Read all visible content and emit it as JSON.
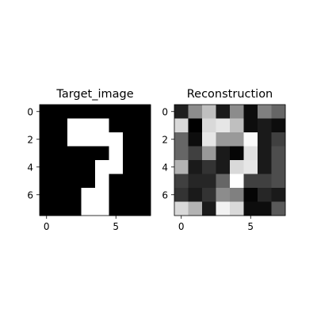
{
  "figure": {
    "background": "#ffffff"
  },
  "chart_data": [
    {
      "type": "heatmap",
      "title": "Target_image",
      "colormap": "gray",
      "vmin": 0,
      "vmax": 1,
      "x_ticks": [
        0,
        5
      ],
      "y_ticks": [
        0,
        2,
        4,
        6
      ],
      "grid": false,
      "values": [
        [
          0,
          0,
          0,
          0,
          0,
          0,
          0,
          0
        ],
        [
          0,
          0,
          1,
          1,
          1,
          0,
          0,
          0
        ],
        [
          0,
          0,
          1,
          1,
          1,
          1,
          0,
          0
        ],
        [
          0,
          0,
          0,
          0,
          0,
          1,
          0,
          0
        ],
        [
          0,
          0,
          0,
          0,
          1,
          1,
          0,
          0
        ],
        [
          0,
          0,
          0,
          0,
          1,
          0,
          0,
          0
        ],
        [
          0,
          0,
          0,
          1,
          1,
          0,
          0,
          0
        ],
        [
          0,
          0,
          0,
          1,
          1,
          0,
          0,
          0
        ]
      ]
    },
    {
      "type": "heatmap",
      "title": "Reconstruction",
      "colormap": "gray",
      "vmin": 0,
      "vmax": 1,
      "x_ticks": [
        0,
        5
      ],
      "y_ticks": [
        0,
        2,
        4,
        6
      ],
      "grid": false,
      "values": [
        [
          0.12,
          0.55,
          0.75,
          0.1,
          0.55,
          0.05,
          0.5,
          0.4
        ],
        [
          0.85,
          0.0,
          0.85,
          0.9,
          0.75,
          0.05,
          0.1,
          0.05
        ],
        [
          0.4,
          0.05,
          0.9,
          0.6,
          0.6,
          0.98,
          0.1,
          0.25
        ],
        [
          0.4,
          0.25,
          0.6,
          0.1,
          0.02,
          0.88,
          0.1,
          0.3
        ],
        [
          0.7,
          0.1,
          0.2,
          0.1,
          0.85,
          0.9,
          0.1,
          0.3
        ],
        [
          0.25,
          0.15,
          0.15,
          0.4,
          1.0,
          0.25,
          0.25,
          0.3
        ],
        [
          0.2,
          0.1,
          0.2,
          0.55,
          0.5,
          0.02,
          0.15,
          0.1
        ],
        [
          0.85,
          0.7,
          0.1,
          0.95,
          0.85,
          0.05,
          0.05,
          0.35
        ]
      ]
    }
  ]
}
